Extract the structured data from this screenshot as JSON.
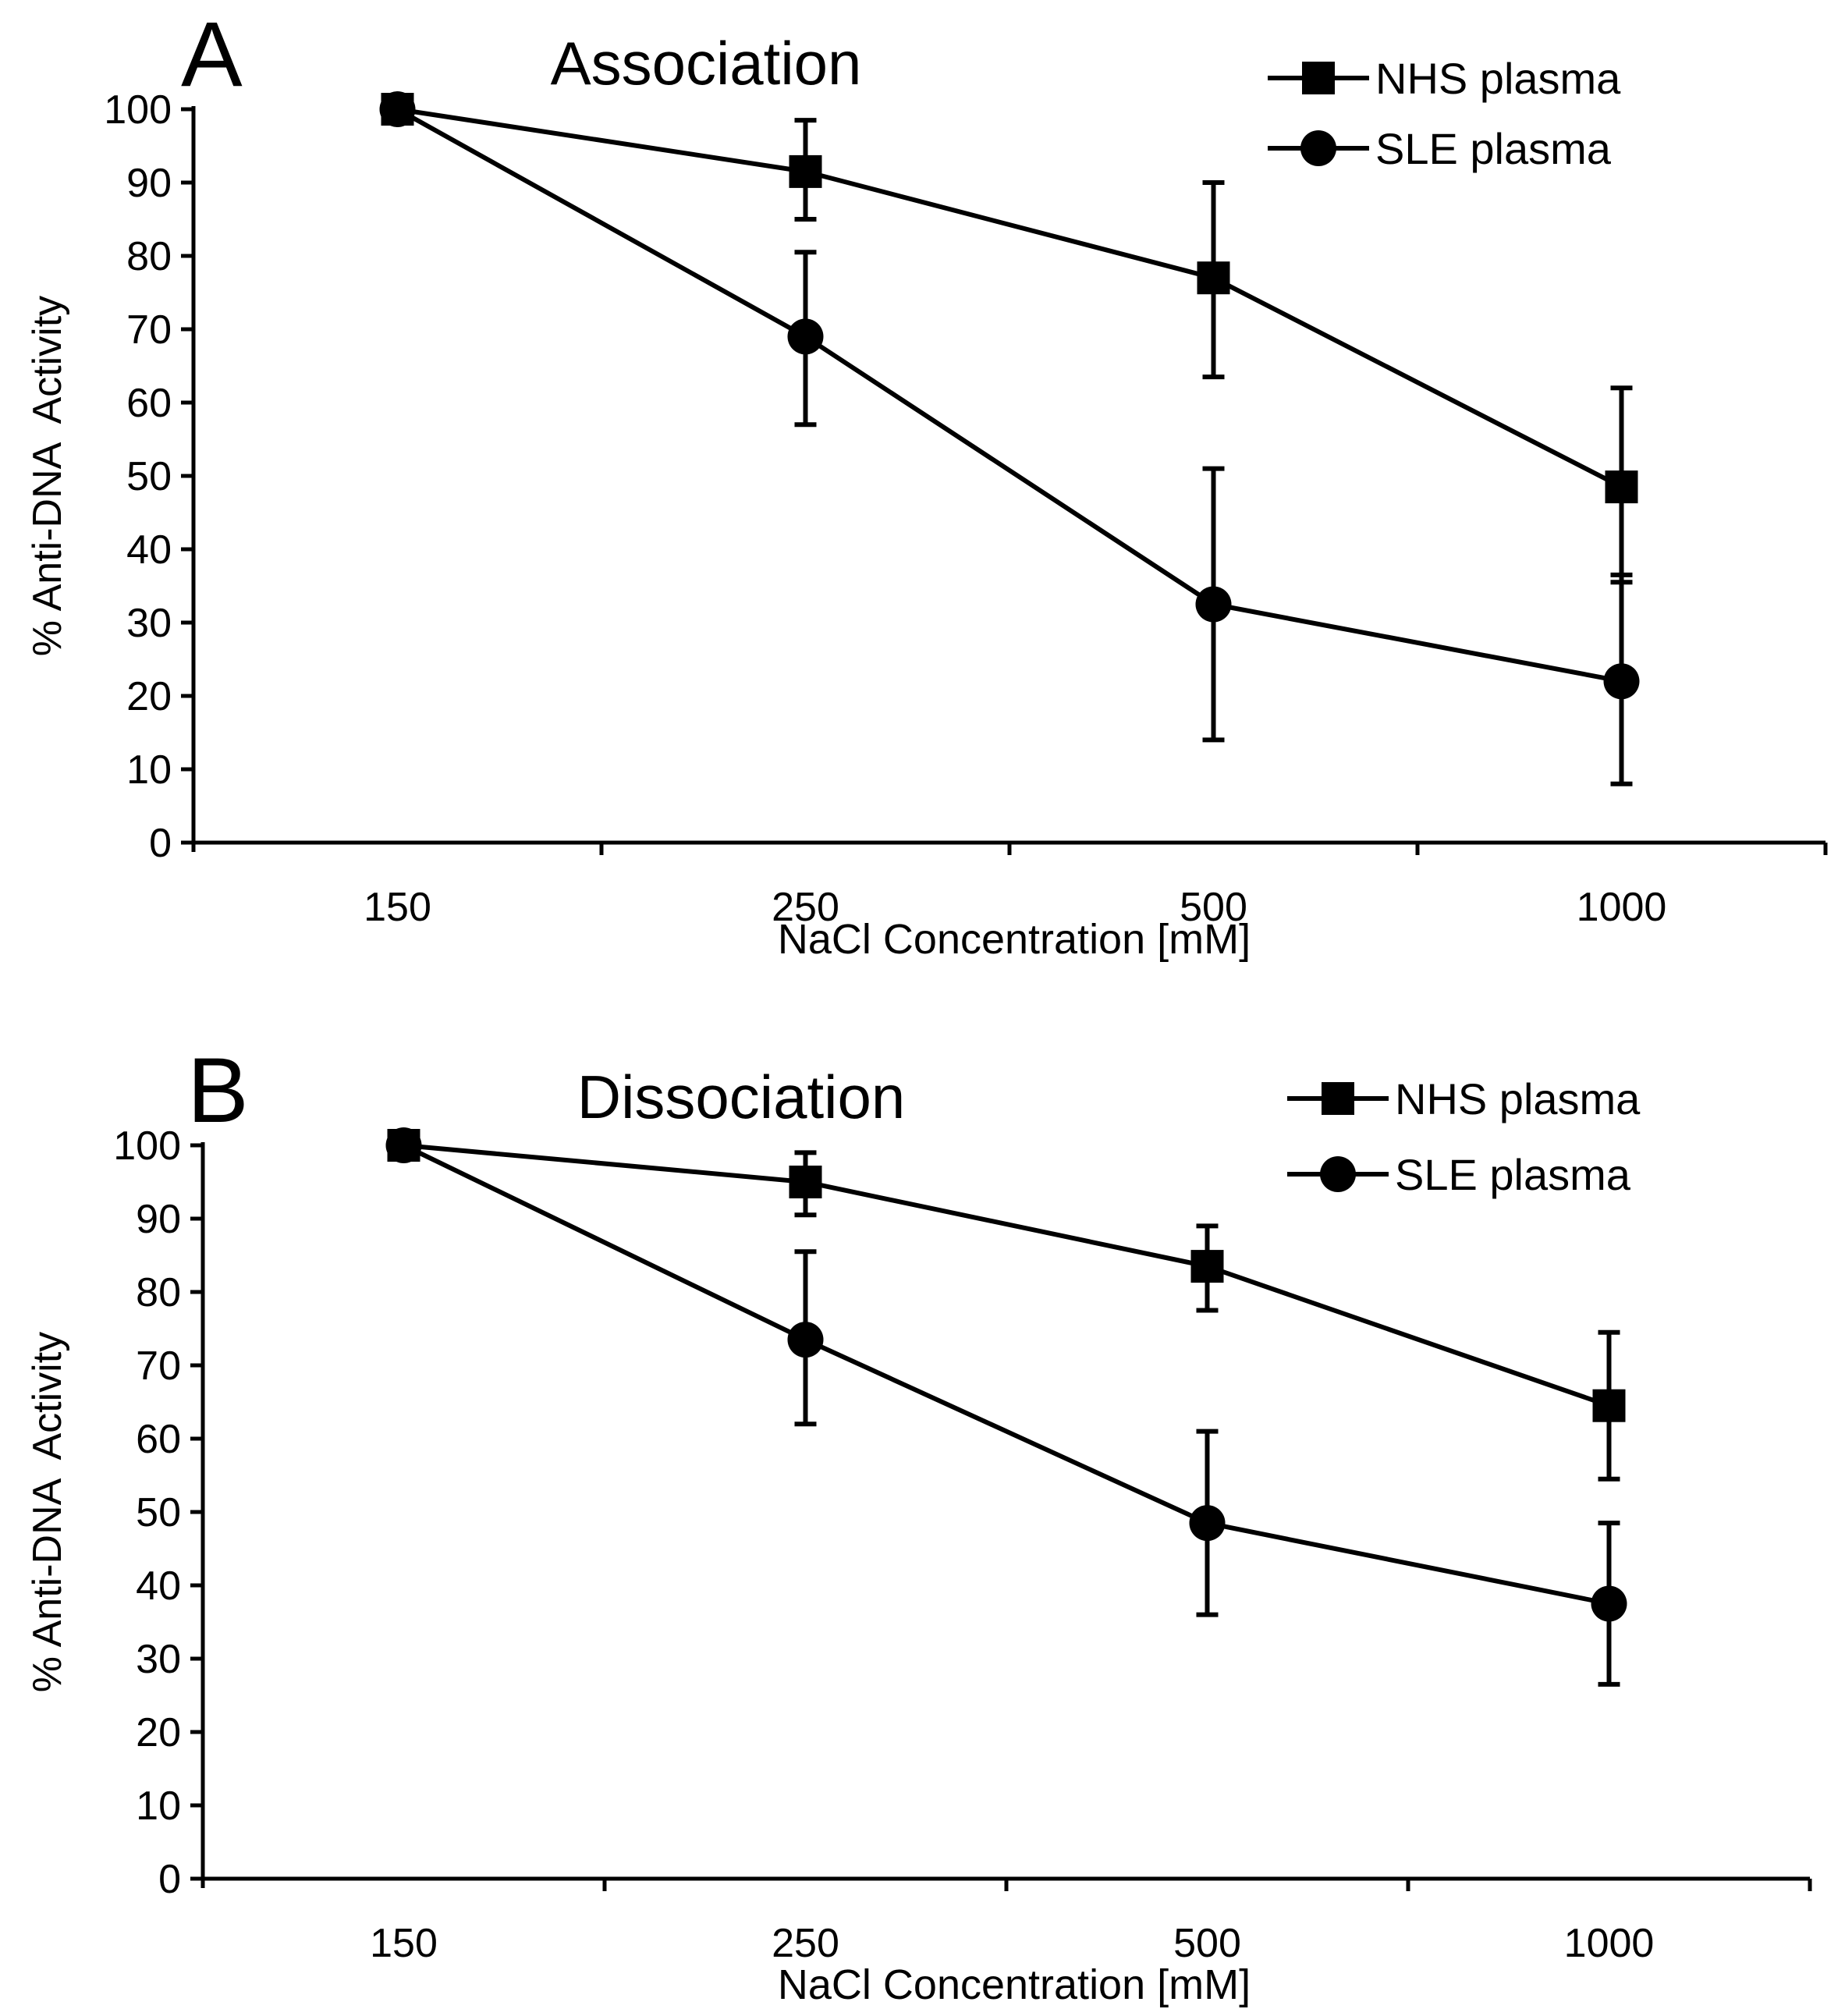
{
  "chart_data": [
    {
      "type": "line",
      "panel": "A",
      "title": "Association",
      "xlabel": "NaCl Concentration [mM]",
      "ylabel": "% Anti-DNA  Activity",
      "categories": [
        "150",
        "250",
        "500",
        "1000"
      ],
      "ylim": [
        0,
        100
      ],
      "yticks": [
        0,
        10,
        20,
        30,
        40,
        50,
        60,
        70,
        80,
        90,
        100
      ],
      "grid": false,
      "legend_position": "top-right",
      "series": [
        {
          "name": "NHS plasma",
          "marker": "square",
          "values": [
            100,
            91.5,
            77,
            48.5
          ],
          "err_upper": [
            null,
            98.5,
            90,
            62
          ],
          "err_lower": [
            null,
            85,
            63.5,
            35.5
          ]
        },
        {
          "name": "SLE plasma",
          "marker": "circle",
          "values": [
            100,
            69,
            32.5,
            22
          ],
          "err_upper": [
            null,
            80.5,
            51,
            36.5
          ],
          "err_lower": [
            null,
            57,
            14,
            8
          ]
        }
      ]
    },
    {
      "type": "line",
      "panel": "B",
      "title": "Dissociation",
      "xlabel": "NaCl Concentration [mM]",
      "ylabel": "% Anti-DNA  Activity",
      "categories": [
        "150",
        "250",
        "500",
        "1000"
      ],
      "ylim": [
        0,
        100
      ],
      "yticks": [
        0,
        10,
        20,
        30,
        40,
        50,
        60,
        70,
        80,
        90,
        100
      ],
      "grid": false,
      "legend_position": "top-right",
      "series": [
        {
          "name": "NHS plasma",
          "marker": "square",
          "values": [
            100,
            95,
            83.5,
            64.5
          ],
          "err_upper": [
            null,
            99,
            89,
            74.5
          ],
          "err_lower": [
            null,
            90.5,
            77.5,
            54.5
          ]
        },
        {
          "name": "SLE plasma",
          "marker": "circle",
          "values": [
            100,
            73.5,
            48.5,
            37.5
          ],
          "err_upper": [
            null,
            85.5,
            61,
            48.5
          ],
          "err_lower": [
            null,
            62,
            36,
            26.5
          ]
        }
      ]
    }
  ]
}
